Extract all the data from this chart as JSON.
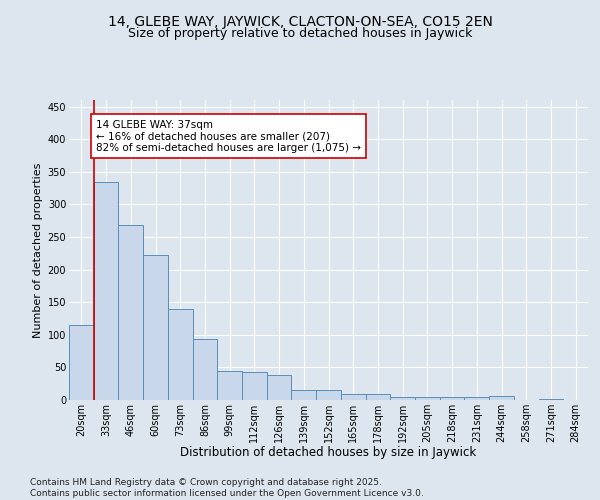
{
  "title": "14, GLEBE WAY, JAYWICK, CLACTON-ON-SEA, CO15 2EN",
  "subtitle": "Size of property relative to detached houses in Jaywick",
  "xlabel": "Distribution of detached houses by size in Jaywick",
  "ylabel": "Number of detached properties",
  "categories": [
    "20sqm",
    "33sqm",
    "46sqm",
    "60sqm",
    "73sqm",
    "86sqm",
    "99sqm",
    "112sqm",
    "126sqm",
    "139sqm",
    "152sqm",
    "165sqm",
    "178sqm",
    "192sqm",
    "205sqm",
    "218sqm",
    "231sqm",
    "244sqm",
    "258sqm",
    "271sqm",
    "284sqm"
  ],
  "values": [
    115,
    335,
    268,
    222,
    140,
    93,
    44,
    43,
    39,
    15,
    15,
    9,
    9,
    5,
    5,
    5,
    5,
    6,
    0,
    2,
    0
  ],
  "bar_color": "#c8d8ea",
  "bar_edge_color": "#5b8db8",
  "vline_x": 0.5,
  "vline_color": "#cc0000",
  "annotation_text": "14 GLEBE WAY: 37sqm\n← 16% of detached houses are smaller (207)\n82% of semi-detached houses are larger (1,075) →",
  "annotation_box_color": "#ffffff",
  "annotation_box_edge": "#cc0000",
  "ylim": [
    0,
    460
  ],
  "yticks": [
    0,
    50,
    100,
    150,
    200,
    250,
    300,
    350,
    400,
    450
  ],
  "bg_color": "#dde6ef",
  "plot_bg_color": "#dde6ef",
  "footer": "Contains HM Land Registry data © Crown copyright and database right 2025.\nContains public sector information licensed under the Open Government Licence v3.0.",
  "title_fontsize": 10,
  "subtitle_fontsize": 9,
  "xlabel_fontsize": 8.5,
  "ylabel_fontsize": 8,
  "tick_fontsize": 7,
  "footer_fontsize": 6.5,
  "ann_fontsize": 7.5
}
